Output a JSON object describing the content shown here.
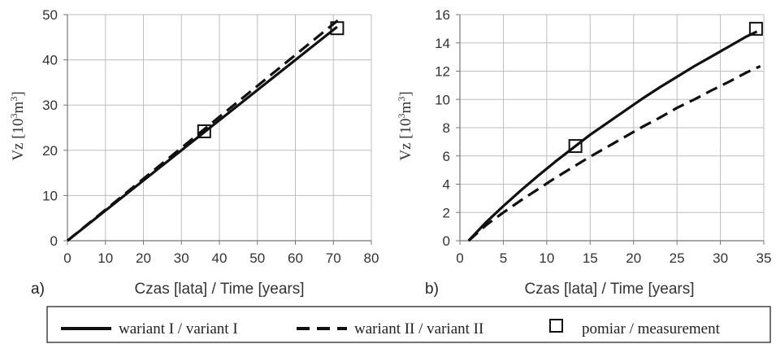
{
  "chart_data": [
    {
      "panel_label": "a)",
      "type": "line",
      "xlabel": "Czas [lata] / Time [years]",
      "ylabel_main": "Vz [10",
      "ylabel_exp1": "3",
      "ylabel_mid": "m",
      "ylabel_exp2": "3",
      "ylabel_end": "]",
      "xlim": [
        0,
        80
      ],
      "ylim": [
        0,
        50
      ],
      "xticks": [
        "0",
        "10",
        "20",
        "30",
        "40",
        "50",
        "60",
        "70",
        "80"
      ],
      "yticks": [
        "0",
        "10",
        "20",
        "30",
        "40",
        "50"
      ],
      "grid": true,
      "series": [
        {
          "name": "wariant I / variant I",
          "style": "solid",
          "x": [
            0,
            71
          ],
          "y": [
            0,
            47.3
          ]
        },
        {
          "name": "wariant II / variant II",
          "style": "dashed",
          "x": [
            0,
            72
          ],
          "y": [
            0,
            49.3
          ]
        }
      ],
      "measurements": {
        "x": [
          36,
          71
        ],
        "y": [
          24.2,
          47
        ]
      }
    },
    {
      "panel_label": "b)",
      "type": "line",
      "xlabel": "Czas [lata] / Time [years]",
      "ylabel_main": "Vz [10",
      "ylabel_exp1": "3",
      "ylabel_mid": "m",
      "ylabel_exp2": "3",
      "ylabel_end": "]",
      "xlim": [
        0,
        35
      ],
      "ylim": [
        0,
        16
      ],
      "xticks": [
        "0",
        "5",
        "10",
        "15",
        "20",
        "25",
        "30",
        "35"
      ],
      "yticks": [
        "0",
        "2",
        "4",
        "6",
        "8",
        "10",
        "12",
        "14",
        "16"
      ],
      "grid": true,
      "series": [
        {
          "name": "wariant I / variant I",
          "style": "solid",
          "x": [
            1,
            3,
            5,
            7,
            9,
            11,
            13,
            15,
            17,
            19,
            21,
            23,
            25,
            27,
            29,
            31,
            33,
            34.2
          ],
          "y": [
            0,
            1.3,
            2.45,
            3.55,
            4.6,
            5.6,
            6.55,
            7.5,
            8.35,
            9.2,
            10.05,
            10.85,
            11.6,
            12.35,
            13.05,
            13.75,
            14.45,
            14.8
          ]
        },
        {
          "name": "wariant II / variant II",
          "style": "dashed",
          "x": [
            1,
            3,
            5,
            7,
            9,
            11,
            13,
            15,
            17,
            19,
            21,
            23,
            25,
            27,
            29,
            31,
            33,
            34.6
          ],
          "y": [
            0,
            1.1,
            2.0,
            2.85,
            3.65,
            4.45,
            5.2,
            5.95,
            6.65,
            7.35,
            8.05,
            8.7,
            9.4,
            10.0,
            10.65,
            11.25,
            11.9,
            12.35
          ]
        }
      ],
      "measurements": {
        "x": [
          13.3,
          34.1
        ],
        "y": [
          6.7,
          15.0
        ]
      }
    }
  ],
  "legend": {
    "items": [
      {
        "label": "wariant I / variant I",
        "style": "solid"
      },
      {
        "label": "wariant II / variant II",
        "style": "dashed"
      },
      {
        "label": "pomiar / measurement",
        "style": "square"
      }
    ]
  }
}
